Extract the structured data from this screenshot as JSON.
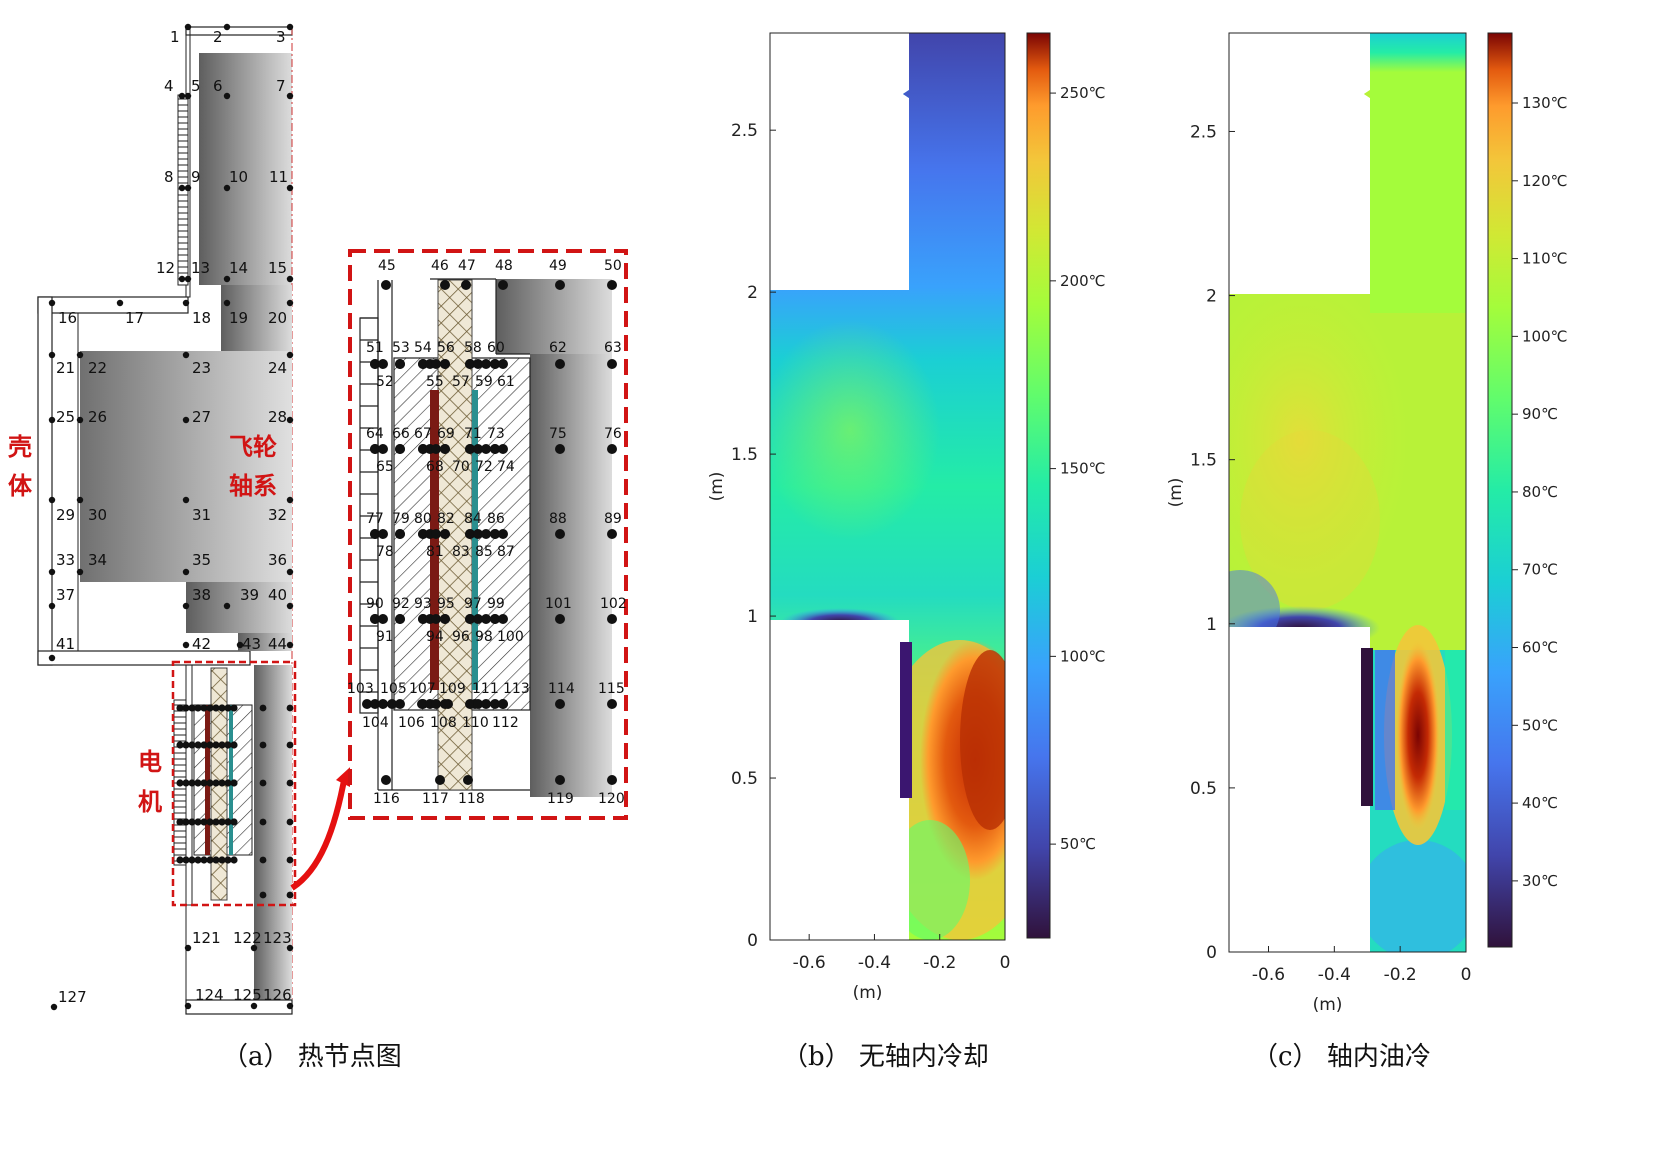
{
  "panel_a": {
    "caption": "（a）    热节点图",
    "labels": {
      "shell": [
        "壳",
        "体"
      ],
      "flywheel": [
        "飞轮",
        "轴系"
      ],
      "motor": [
        "电",
        "机"
      ]
    },
    "nodes_main": [
      "1",
      "2",
      "3",
      "4",
      "5",
      "6",
      "7",
      "8",
      "9",
      "10",
      "11",
      "12",
      "13",
      "14",
      "15",
      "16",
      "17",
      "18",
      "19",
      "20",
      "21",
      "22",
      "23",
      "24",
      "25",
      "26",
      "27",
      "28",
      "29",
      "30",
      "31",
      "32",
      "33",
      "34",
      "35",
      "36",
      "37",
      "38",
      "39",
      "40",
      "41",
      "42",
      "43",
      "44",
      "121",
      "122",
      "123",
      "124",
      "125",
      "126",
      "127"
    ],
    "nodes_zoom": [
      "45",
      "46",
      "47",
      "48",
      "49",
      "50",
      "51",
      "52",
      "53",
      "54",
      "55",
      "56",
      "57",
      "58",
      "59",
      "60",
      "61",
      "62",
      "63",
      "64",
      "65",
      "66",
      "67",
      "68",
      "69",
      "70",
      "71",
      "72",
      "73",
      "74",
      "75",
      "76",
      "77",
      "78",
      "79",
      "80",
      "81",
      "82",
      "83",
      "84",
      "85",
      "86",
      "87",
      "88",
      "89",
      "90",
      "91",
      "92",
      "93",
      "94",
      "95",
      "96",
      "97",
      "98",
      "99",
      "100",
      "101",
      "102",
      "103",
      "104",
      "105",
      "106",
      "107",
      "108",
      "109",
      "110",
      "111",
      "112",
      "113",
      "114",
      "115",
      "116",
      "117",
      "118",
      "119",
      "120"
    ]
  },
  "panel_b": {
    "caption": "（b）    无轴内冷却",
    "colorbar_ticks": [
      "250℃",
      "200℃",
      "150℃",
      "100℃",
      "50℃"
    ]
  },
  "panel_c": {
    "caption": "（c）    轴内油冷",
    "colorbar_ticks": [
      "130℃",
      "120℃",
      "110℃",
      "100℃",
      "90℃",
      "80℃",
      "70℃",
      "60℃",
      "50℃",
      "40℃",
      "30℃"
    ]
  },
  "axes": {
    "xlabel": "(m)",
    "ylabel": "(m)",
    "xticks": [
      "-0.6",
      "-0.4",
      "-0.2",
      "0"
    ],
    "yticks_b": [
      "0",
      "0.5",
      "1",
      "1.5",
      "2",
      "2.5"
    ],
    "yticks_c": [
      "0",
      "0.5",
      "1",
      "1.5",
      "2",
      "2.5"
    ]
  },
  "colors": {
    "red": "#d11414",
    "gray_dark": "#6a6a6a",
    "gray_light": "#d0d0d0"
  }
}
